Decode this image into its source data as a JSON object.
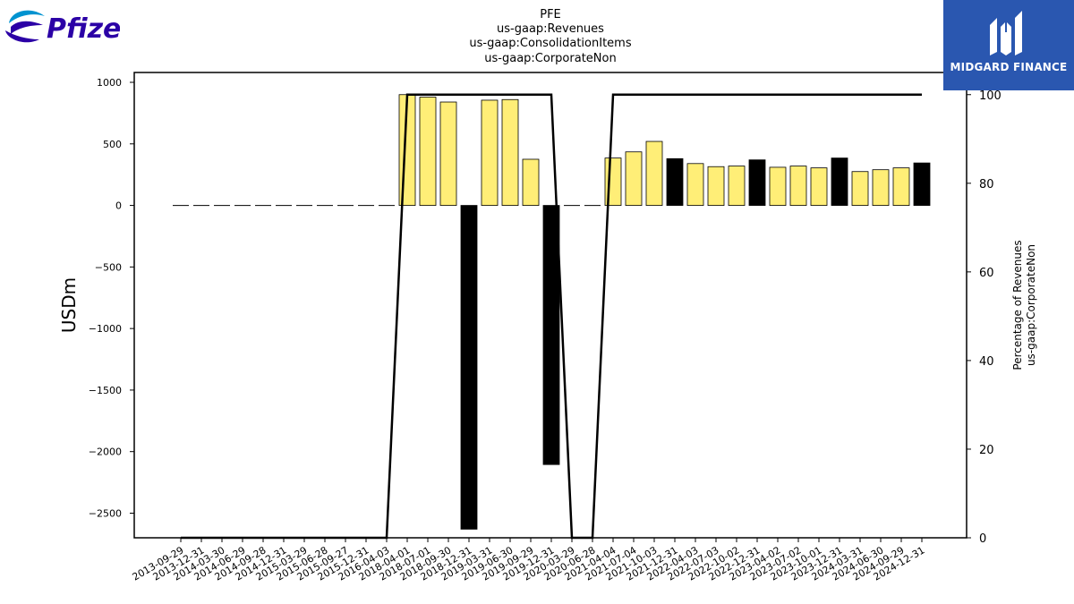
{
  "brand": {
    "left_logo_text": "Pfizer",
    "right_logo_text": "MIDGARD FINANCE",
    "colors": {
      "pfizer_blue": "#0093d0",
      "pfizer_dark": "#2b00a6",
      "midgard_bg": "#2a57b0"
    }
  },
  "chart_data": {
    "type": "bar",
    "title_lines": [
      "PFE",
      "us-gaap:Revenues",
      "us-gaap:ConsolidationItems",
      "us-gaap:CorporateNon"
    ],
    "ylabel": "USDm",
    "y2label_lines": [
      "Percentage of Revenues",
      "us-gaap:CorporateNon"
    ],
    "ylim": [
      -2700,
      1080
    ],
    "y2lim": [
      0,
      105
    ],
    "yticks": [
      1000,
      500,
      0,
      -500,
      -1000,
      -1500,
      -2000,
      -2500
    ],
    "ytick_labels": [
      "1000",
      "500",
      "0",
      "−500",
      "−1000",
      "−1500",
      "−2000",
      "−2500"
    ],
    "y2ticks": [
      0,
      20,
      40,
      60,
      80,
      100
    ],
    "y2tick_labels": [
      "0",
      "20",
      "40",
      "60",
      "80",
      "100"
    ],
    "colors": {
      "normal": "#ffee77",
      "highlight": "#000000",
      "line": "#000000"
    },
    "categories": [
      "2013-09-29",
      "2013-12-31",
      "2014-03-30",
      "2014-06-29",
      "2014-09-28",
      "2014-12-31",
      "2015-03-29",
      "2015-06-28",
      "2015-09-27",
      "2015-12-31",
      "2016-04-03",
      "2018-04-01",
      "2018-07-01",
      "2018-09-30",
      "2018-12-31",
      "2019-03-31",
      "2019-06-30",
      "2019-09-29",
      "2019-12-31",
      "2020-03-29",
      "2020-06-28",
      "2021-04-04",
      "2021-07-04",
      "2021-10-03",
      "2021-12-31",
      "2022-04-03",
      "2022-07-03",
      "2022-10-02",
      "2022-12-31",
      "2023-04-02",
      "2023-07-02",
      "2023-10-01",
      "2023-12-31",
      "2024-03-31",
      "2024-06-30",
      "2024-09-29",
      "2024-12-31"
    ],
    "values": [
      0,
      0,
      0,
      0,
      0,
      0,
      0,
      0,
      0,
      0,
      0,
      900,
      880,
      840,
      -2630,
      855,
      860,
      375,
      -2105,
      0,
      0,
      385,
      435,
      520,
      380,
      340,
      315,
      320,
      370,
      310,
      320,
      305,
      385,
      275,
      290,
      305,
      345
    ],
    "highlight": [
      false,
      false,
      false,
      false,
      false,
      false,
      false,
      false,
      false,
      false,
      false,
      false,
      false,
      false,
      true,
      false,
      false,
      false,
      true,
      false,
      false,
      false,
      false,
      false,
      true,
      false,
      false,
      false,
      true,
      false,
      false,
      false,
      true,
      false,
      false,
      false,
      true
    ],
    "percentage_series": [
      0,
      0,
      0,
      0,
      0,
      0,
      0,
      0,
      0,
      0,
      0,
      100,
      100,
      100,
      100,
      100,
      100,
      100,
      100,
      0,
      0,
      100,
      100,
      100,
      100,
      100,
      100,
      100,
      100,
      100,
      100,
      100,
      100,
      100,
      100,
      100,
      100
    ]
  }
}
